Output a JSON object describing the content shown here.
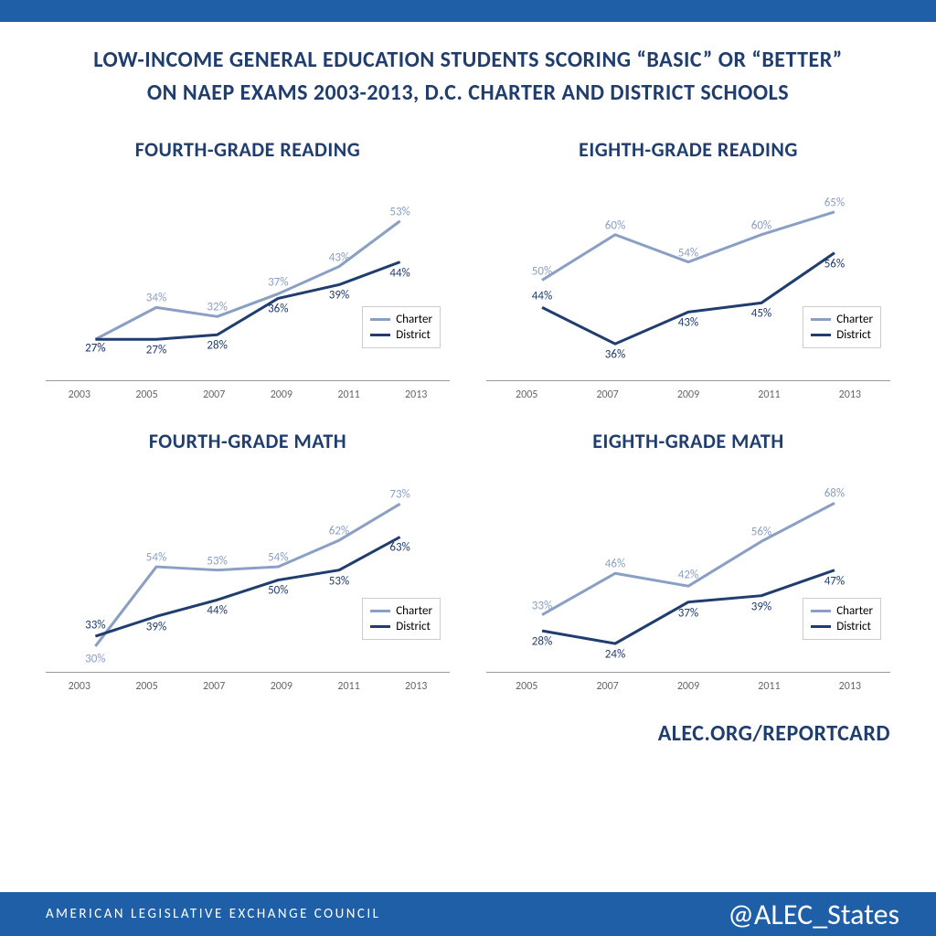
{
  "header": {
    "line1": "LOW-INCOME GENERAL EDUCATION STUDENTS SCORING “BASIC” OR “BETTER”",
    "line2": "ON NAEP EXAMS 2003-2013, D.C. CHARTER AND DISTRICT SCHOOLS"
  },
  "colors": {
    "charter": "#8a9fc4",
    "district": "#1f3d6e",
    "accent_bar": "#1f5fa8",
    "title_text": "#1f3d6e",
    "axis": "#999999",
    "tick_text": "#666666",
    "bg": "#ffffff"
  },
  "legend": {
    "charter": "Charter",
    "district": "District"
  },
  "charts": [
    {
      "title": "FOURTH-GRADE READING",
      "years": [
        "2003",
        "2005",
        "2007",
        "2009",
        "2011",
        "2013"
      ],
      "ylim": [
        20,
        60
      ],
      "charter": [
        27,
        34,
        32,
        37,
        43,
        53
      ],
      "district": [
        27,
        27,
        28,
        36,
        39,
        44
      ],
      "label_offsets": {
        "charter": [
          10,
          -10,
          -10,
          -12,
          -10,
          -10
        ],
        "district": [
          10,
          12,
          12,
          12,
          12,
          12
        ]
      }
    },
    {
      "title": "EIGHTH-GRADE READING",
      "years": [
        "2005",
        "2007",
        "2009",
        "2011",
        "2013"
      ],
      "ylim": [
        30,
        70
      ],
      "charter": [
        50,
        60,
        54,
        60,
        65
      ],
      "district": [
        44,
        36,
        43,
        45,
        56
      ],
      "label_offsets": {
        "charter": [
          -10,
          -10,
          -10,
          -10,
          -10
        ],
        "district": [
          -12,
          12,
          12,
          12,
          12
        ]
      }
    },
    {
      "title": "FOURTH-GRADE MATH",
      "years": [
        "2003",
        "2005",
        "2007",
        "2009",
        "2011",
        "2013"
      ],
      "ylim": [
        25,
        80
      ],
      "charter": [
        30,
        54,
        53,
        54,
        62,
        73
      ],
      "district": [
        33,
        39,
        44,
        50,
        53,
        63
      ],
      "label_offsets": {
        "charter": [
          14,
          -10,
          -10,
          -10,
          -10,
          -10
        ],
        "district": [
          -12,
          12,
          12,
          12,
          12,
          12
        ]
      }
    },
    {
      "title": "EIGHTH-GRADE MATH",
      "years": [
        "2005",
        "2007",
        "2009",
        "2011",
        "2013"
      ],
      "ylim": [
        18,
        75
      ],
      "charter": [
        33,
        46,
        42,
        56,
        68
      ],
      "district": [
        28,
        24,
        37,
        39,
        47
      ],
      "label_offsets": {
        "charter": [
          -10,
          -10,
          -12,
          -10,
          -10
        ],
        "district": [
          12,
          12,
          12,
          12,
          12
        ]
      }
    }
  ],
  "footer": {
    "url": "ALEC.ORG/REPORTCARD",
    "org": "AMERICAN LEGISLATIVE EXCHANGE COUNCIL",
    "handle": "@ALEC_States"
  },
  "styling": {
    "title_fontsize": 24,
    "chart_title_fontsize": 22,
    "tick_fontsize": 12,
    "label_fontsize": 13,
    "legend_fontsize": 13,
    "line_width": 3
  }
}
